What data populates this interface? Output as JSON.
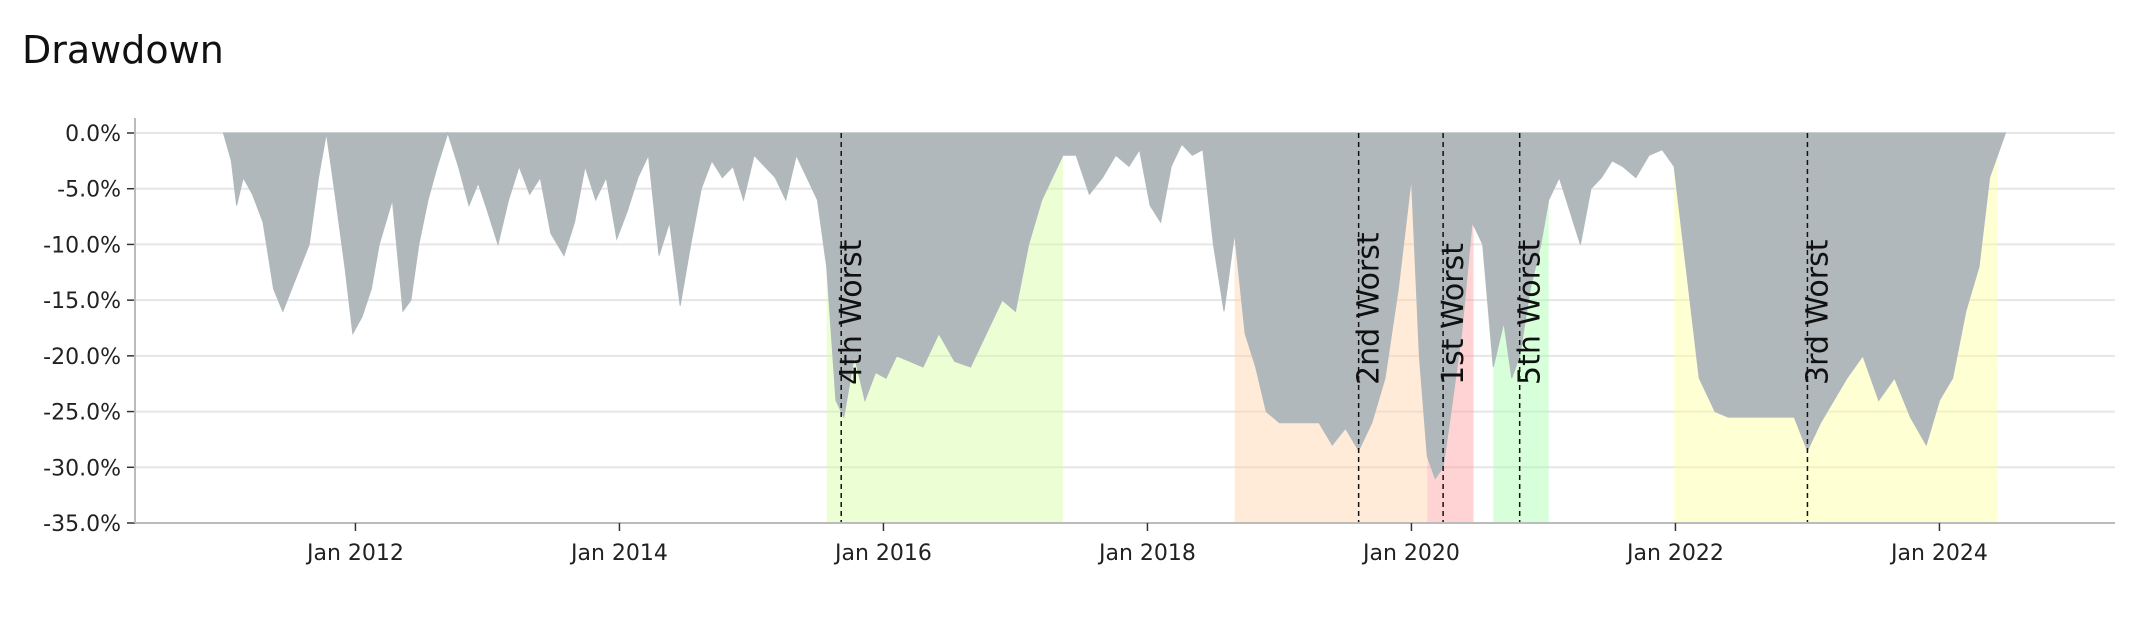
{
  "title": "Drawdown",
  "chart_data": {
    "type": "area",
    "title": "Drawdown",
    "xlabel": "",
    "ylabel": "",
    "x_range": [
      2010.33,
      2025.33
    ],
    "ylim": [
      -35,
      0
    ],
    "grid": true,
    "x_ticks": [
      {
        "value": 2012.0,
        "label": "Jan 2012"
      },
      {
        "value": 2014.0,
        "label": "Jan 2014"
      },
      {
        "value": 2016.0,
        "label": "Jan 2016"
      },
      {
        "value": 2018.0,
        "label": "Jan 2018"
      },
      {
        "value": 2020.0,
        "label": "Jan 2020"
      },
      {
        "value": 2022.0,
        "label": "Jan 2022"
      },
      {
        "value": 2024.0,
        "label": "Jan 2024"
      }
    ],
    "y_ticks": [
      {
        "value": 0,
        "label": "0.0%"
      },
      {
        "value": -5,
        "label": "-5.0%"
      },
      {
        "value": -10,
        "label": "-10.0%"
      },
      {
        "value": -15,
        "label": "-15.0%"
      },
      {
        "value": -20,
        "label": "-20.0%"
      },
      {
        "value": -25,
        "label": "-25.0%"
      },
      {
        "value": -30,
        "label": "-30.0%"
      },
      {
        "value": -35,
        "label": "-35.0%"
      }
    ],
    "worst_periods": [
      {
        "label": "1st Worst",
        "start": 2020.12,
        "end": 2020.47,
        "trough": 2020.24,
        "color": "#ff9e9e"
      },
      {
        "label": "2nd Worst",
        "start": 2018.66,
        "end": 2020.12,
        "trough": 2019.6,
        "color": "#ffd2a6"
      },
      {
        "label": "3rd Worst",
        "start": 2021.99,
        "end": 2024.44,
        "trough": 2023.0,
        "color": "#ffff9f"
      },
      {
        "label": "4th Worst",
        "start": 2015.57,
        "end": 2017.36,
        "trough": 2015.68,
        "color": "#d4ff9f"
      },
      {
        "label": "5th Worst",
        "start": 2020.62,
        "end": 2021.04,
        "trough": 2020.82,
        "color": "#a6ffae"
      }
    ],
    "series": [
      {
        "fill_color": "#b0b8bc",
        "x": [
          2011.0,
          2011.06,
          2011.1,
          2011.15,
          2011.22,
          2011.3,
          2011.38,
          2011.45,
          2011.55,
          2011.65,
          2011.72,
          2011.78,
          2011.84,
          2011.92,
          2011.98,
          2012.05,
          2012.12,
          2012.18,
          2012.28,
          2012.36,
          2012.42,
          2012.48,
          2012.55,
          2012.62,
          2012.7,
          2012.78,
          2012.86,
          2012.93,
          2013.0,
          2013.08,
          2013.16,
          2013.24,
          2013.32,
          2013.4,
          2013.48,
          2013.58,
          2013.66,
          2013.74,
          2013.82,
          2013.9,
          2013.98,
          2014.06,
          2014.14,
          2014.22,
          2014.3,
          2014.38,
          2014.46,
          2014.54,
          2014.62,
          2014.7,
          2014.78,
          2014.86,
          2014.94,
          2015.02,
          2015.1,
          2015.18,
          2015.26,
          2015.34,
          2015.42,
          2015.5,
          2015.57,
          2015.64,
          2015.7,
          2015.78,
          2015.86,
          2015.94,
          2016.02,
          2016.1,
          2016.2,
          2016.3,
          2016.42,
          2016.54,
          2016.66,
          2016.78,
          2016.9,
          2017.0,
          2017.1,
          2017.2,
          2017.28,
          2017.36,
          2017.46,
          2017.56,
          2017.66,
          2017.76,
          2017.86,
          2017.94,
          2018.02,
          2018.1,
          2018.18,
          2018.26,
          2018.34,
          2018.42,
          2018.5,
          2018.58,
          2018.66,
          2018.74,
          2018.82,
          2018.9,
          2019.0,
          2019.1,
          2019.2,
          2019.3,
          2019.4,
          2019.5,
          2019.6,
          2019.7,
          2019.8,
          2019.9,
          2020.0,
          2020.06,
          2020.12,
          2020.18,
          2020.24,
          2020.3,
          2020.38,
          2020.46,
          2020.54,
          2020.62,
          2020.7,
          2020.76,
          2020.82,
          2020.9,
          2020.98,
          2021.04,
          2021.12,
          2021.2,
          2021.28,
          2021.36,
          2021.44,
          2021.52,
          2021.6,
          2021.7,
          2021.8,
          2021.9,
          2021.99,
          2022.08,
          2022.18,
          2022.3,
          2022.4,
          2022.5,
          2022.6,
          2022.7,
          2022.8,
          2022.9,
          2023.0,
          2023.1,
          2023.2,
          2023.3,
          2023.42,
          2023.54,
          2023.66,
          2023.78,
          2023.9,
          2024.0,
          2024.1,
          2024.2,
          2024.3,
          2024.38,
          2024.44,
          2024.5
        ],
        "y": [
          0,
          -2.5,
          -6.5,
          -4.0,
          -5.5,
          -8.0,
          -14.0,
          -16.0,
          -13.0,
          -10.0,
          -4.0,
          0,
          -5.0,
          -12.0,
          -18.0,
          -16.5,
          -14.0,
          -10.0,
          -6.0,
          -16.0,
          -15.0,
          -10.0,
          -6.0,
          -3.0,
          0,
          -3.0,
          -6.5,
          -4.5,
          -7.0,
          -10.0,
          -6.0,
          -3.0,
          -5.5,
          -4.0,
          -9.0,
          -11.0,
          -8.0,
          -3.0,
          -6.0,
          -4.0,
          -9.5,
          -7.0,
          -4.0,
          -2.0,
          -11.0,
          -8.0,
          -15.5,
          -10.0,
          -5.0,
          -2.5,
          -4.0,
          -3.0,
          -6.0,
          -2.0,
          -3.0,
          -4.0,
          -6.0,
          -2.0,
          -4.0,
          -6.0,
          -12.0,
          -24.0,
          -25.5,
          -20.0,
          -24.0,
          -21.5,
          -22.0,
          -20.0,
          -20.5,
          -21.0,
          -18.0,
          -20.5,
          -21.0,
          -18.0,
          -15.0,
          -16.0,
          -10.0,
          -6.0,
          -4.0,
          -2.0,
          -2.0,
          -5.5,
          -4.0,
          -2.0,
          -3.0,
          -1.5,
          -6.5,
          -8.0,
          -3.0,
          -1.0,
          -2.0,
          -1.5,
          -10.0,
          -16.0,
          -9.0,
          -18.0,
          -21.0,
          -25.0,
          -26.0,
          -26.0,
          -26.0,
          -26.0,
          -28.0,
          -26.5,
          -28.5,
          -26.0,
          -22.0,
          -14.0,
          -4.0,
          -20.0,
          -29.0,
          -31.0,
          -30.0,
          -25.0,
          -18.0,
          -8.0,
          -10.0,
          -21.0,
          -17.0,
          -22.0,
          -20.0,
          -14.0,
          -10.0,
          -6.0,
          -4.0,
          -7.0,
          -10.0,
          -5.0,
          -4.0,
          -2.5,
          -3.0,
          -4.0,
          -2.0,
          -1.5,
          -3.0,
          -12.0,
          -22.0,
          -25.0,
          -25.5,
          -25.5,
          -25.5,
          -25.5,
          -25.5,
          -25.5,
          -28.5,
          -26.0,
          -24.0,
          -22.0,
          -20.0,
          -24.0,
          -22.0,
          -25.5,
          -28.0,
          -24.0,
          -22.0,
          -16.0,
          -12.0,
          -4.0,
          -2.0,
          0
        ]
      }
    ]
  }
}
